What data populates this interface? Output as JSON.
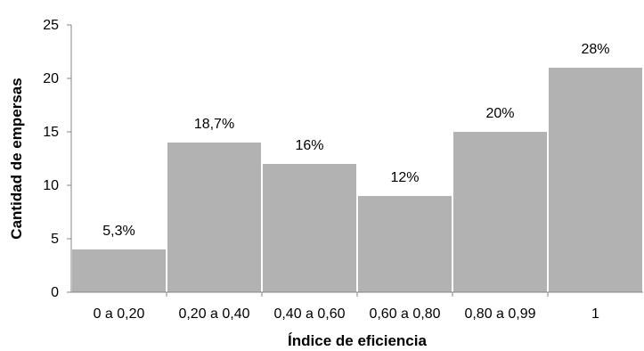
{
  "chart_data": {
    "type": "bar",
    "categories": [
      "0 a 0,20",
      "0,20 a 0,40",
      "0,40 a 0,60",
      "0,60 a 0,80",
      "0,80 a 0,99",
      "1"
    ],
    "values": [
      4,
      14,
      12,
      9,
      15,
      21
    ],
    "data_labels": [
      "5,3%",
      "18,7%",
      "16%",
      "12%",
      "20%",
      "28%"
    ],
    "xlabel": "Índice de eficiencia",
    "ylabel": "Cantidad de empersas",
    "ylim": [
      0,
      25
    ],
    "yticks": [
      0,
      5,
      10,
      15,
      20,
      25
    ],
    "grid": false,
    "legend": "none",
    "bar_color": "#b2b2b2",
    "axis_color": "#868686"
  }
}
